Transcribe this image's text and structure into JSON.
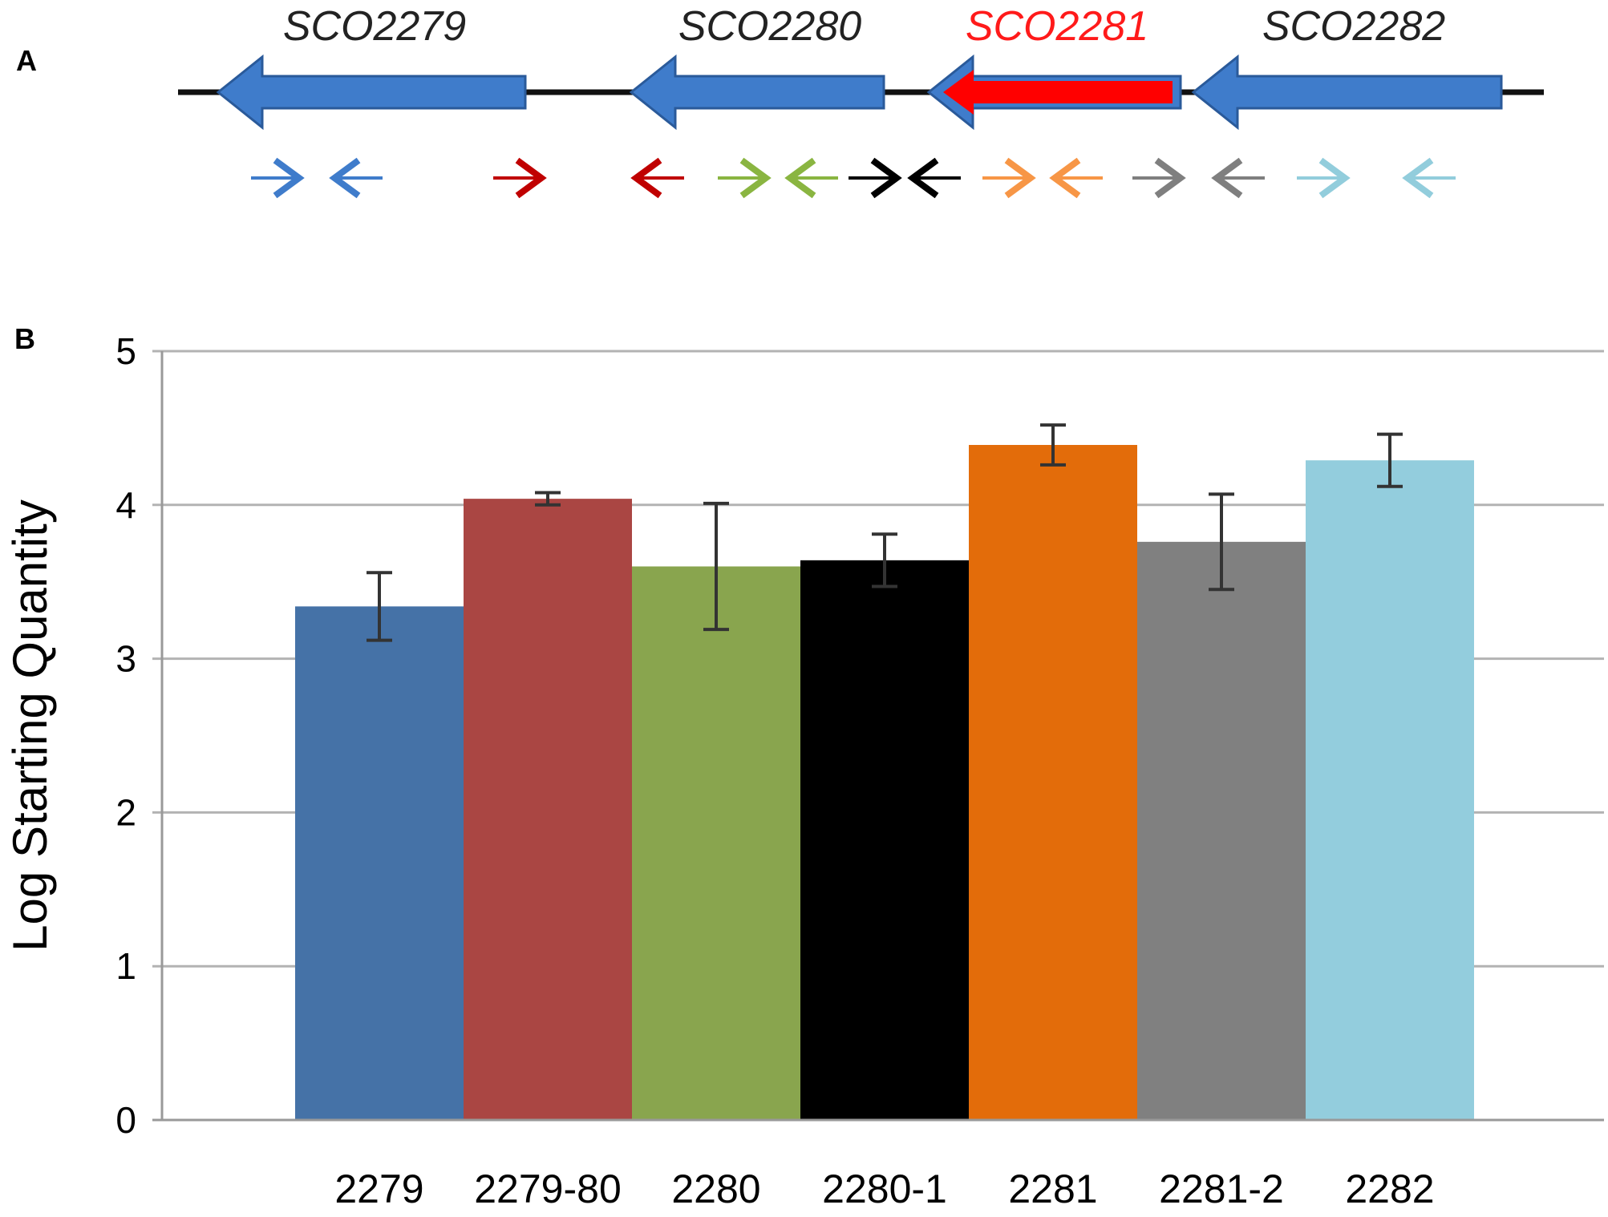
{
  "panel_a": {
    "letter": "A",
    "genes": [
      {
        "label": "SCO2279",
        "color": "#3f7ccb",
        "label_color": "#222222",
        "highlight": false
      },
      {
        "label": "SCO2280",
        "color": "#3f7ccb",
        "label_color": "#222222",
        "highlight": false
      },
      {
        "label": "SCO2281",
        "color": "#ff0000",
        "label_color": "#ff1a1a",
        "highlight": true
      },
      {
        "label": "SCO2282",
        "color": "#3f7ccb",
        "label_color": "#222222",
        "highlight": false
      }
    ],
    "gene_outline_color": "#2a5a9a",
    "primers": [
      {
        "direction": "right",
        "color": "#3f7ccb"
      },
      {
        "direction": "left",
        "color": "#3f7ccb"
      },
      {
        "direction": "right",
        "color": "#c00000"
      },
      {
        "direction": "left",
        "color": "#c00000"
      },
      {
        "direction": "right",
        "color": "#8ab541"
      },
      {
        "direction": "left",
        "color": "#8ab541"
      },
      {
        "direction": "right",
        "color": "#000000"
      },
      {
        "direction": "left",
        "color": "#000000"
      },
      {
        "direction": "right",
        "color": "#f79646"
      },
      {
        "direction": "left",
        "color": "#f79646"
      },
      {
        "direction": "right",
        "color": "#7f7f7f"
      },
      {
        "direction": "left",
        "color": "#7f7f7f"
      },
      {
        "direction": "right",
        "color": "#92cddc"
      },
      {
        "direction": "left",
        "color": "#92cddc"
      }
    ]
  },
  "panel_b": {
    "letter": "B"
  },
  "chart_data": {
    "type": "bar",
    "title": "",
    "xlabel": "",
    "ylabel": "Log Starting Quantity",
    "ylim": [
      0,
      5
    ],
    "yticks": [
      "0",
      "1",
      "2",
      "3",
      "4",
      "5"
    ],
    "grid": true,
    "categories": [
      "2279",
      "2279-80",
      "2280",
      "2280-1",
      "2281",
      "2281-2",
      "2282"
    ],
    "values": [
      3.34,
      4.04,
      3.6,
      3.64,
      4.39,
      3.76,
      4.29
    ],
    "errors": [
      0.22,
      0.04,
      0.41,
      0.17,
      0.13,
      0.31,
      0.17
    ],
    "colors": [
      "#4572a7",
      "#aa4643",
      "#89a54e",
      "#000000",
      "#e36c0a",
      "#808080",
      "#93cddd"
    ],
    "grid_color": "#b3b3b3",
    "error_bar_color": "#333333"
  }
}
